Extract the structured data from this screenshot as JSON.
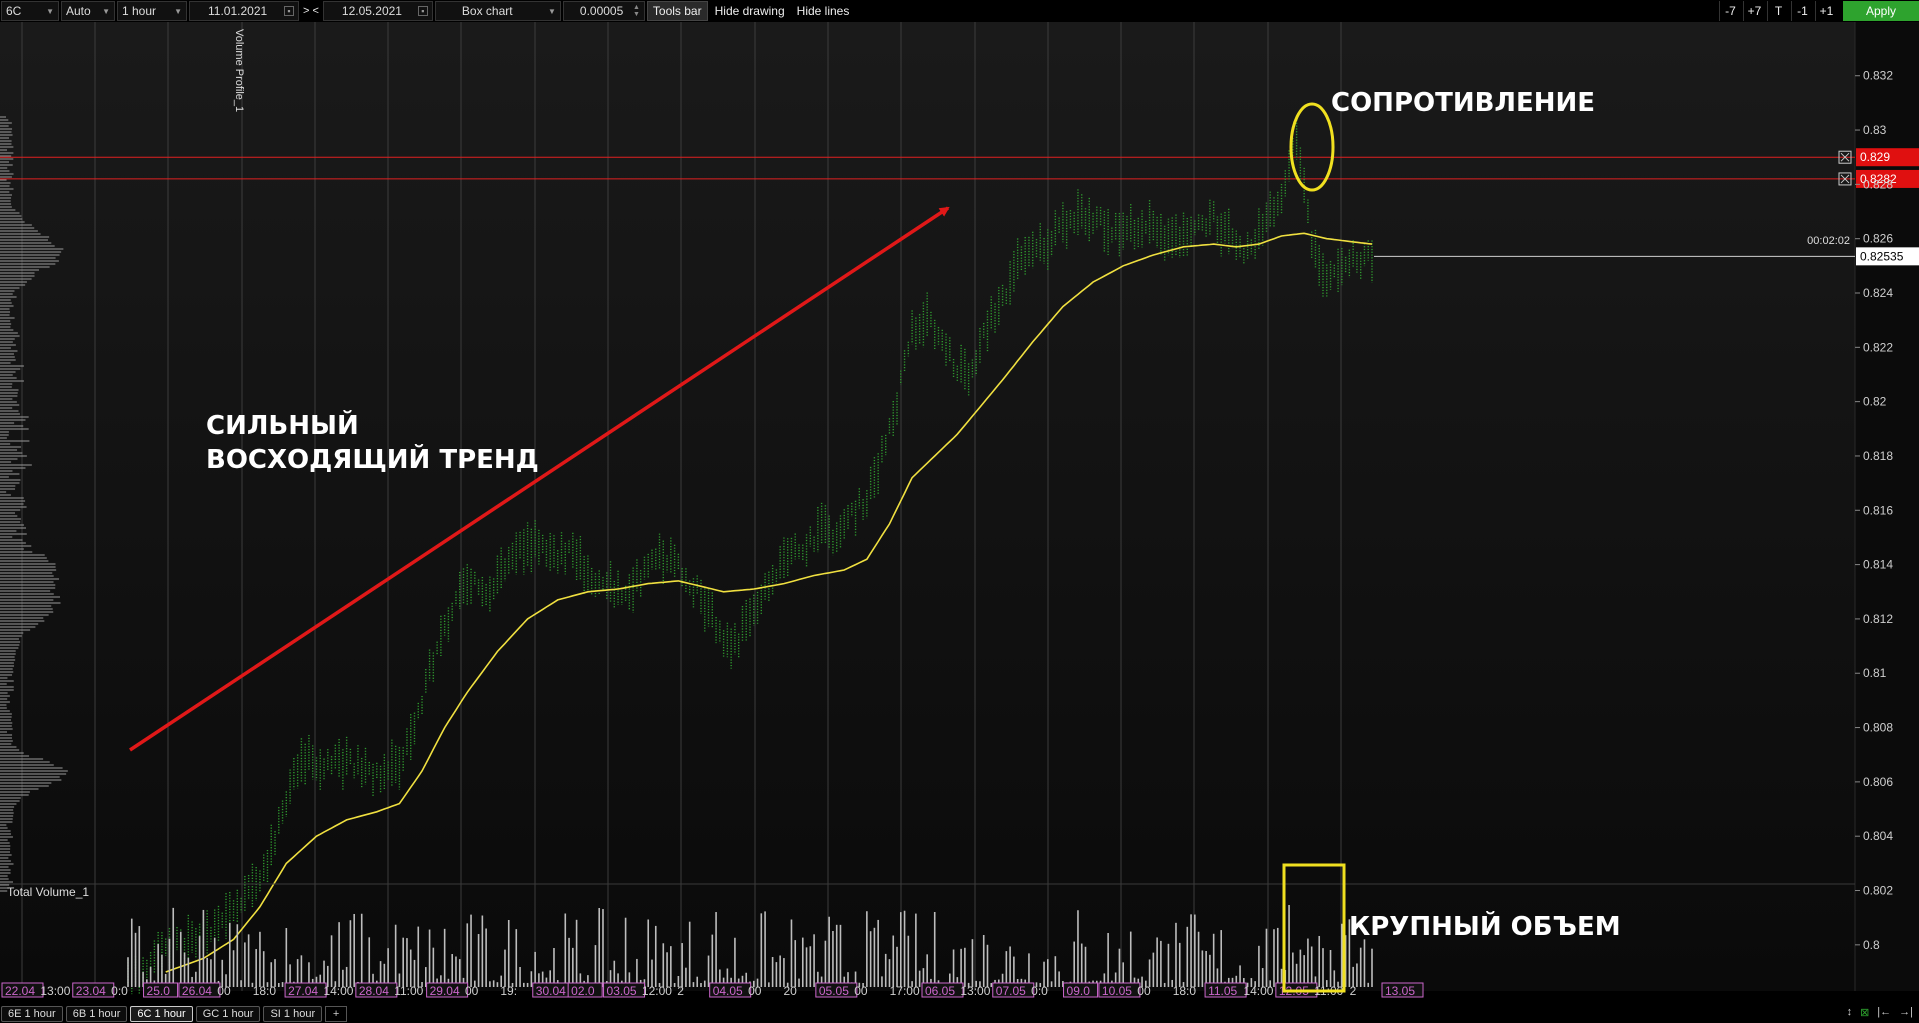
{
  "toolbar": {
    "symbol": "6C",
    "scale": "Auto",
    "timeframe": "1 hour",
    "date_from": "11.01.2021",
    "range_nav": "> <",
    "date_to": "12.05.2021",
    "chart_type": "Box chart",
    "tick_size": "0.00005",
    "tools_bar": "Tools bar",
    "hide_drawing": "Hide drawing",
    "hide_lines": "Hide lines",
    "shift_buttons": [
      "-7",
      "+7",
      "T",
      "-1",
      "+1"
    ],
    "apply": "Apply"
  },
  "tabs": [
    "6E 1 hour",
    "6B 1 hour",
    "6C 1 hour",
    "GC 1 hour",
    "SI 1 hour"
  ],
  "active_tab": 2,
  "tab_add": "+",
  "tab_tools": [
    "↕",
    "⊠",
    "|←",
    "→|"
  ],
  "annotations": {
    "resistance": "СОПРОТИВЛЕНИЕ",
    "trend_line1": "СИЛЬНЫЙ",
    "trend_line2": "ВОСХОДЯЩИЙ ТРЕНД",
    "volume": "КРУПНЫЙ ОБЪЕМ"
  },
  "indicators": {
    "volume_profile": "Volume Profile_1",
    "total_volume": "Total Volume_1"
  },
  "timer": "00:02:02",
  "colors": {
    "bars": "#2f9a2f",
    "ma": "#f0e040",
    "arrow": "#e01818",
    "levels": "#e02020",
    "highlight": "#f0e020",
    "date_label": "#cc66cc",
    "apply": "#2ea32e"
  },
  "chart_data": {
    "type": "bar",
    "y_axis": {
      "min": 0.799,
      "max": 0.8328,
      "ticks": [
        "0.832",
        "0.83",
        "0.828",
        "0.826",
        "0.824",
        "0.822",
        "0.82",
        "0.818",
        "0.816",
        "0.814",
        "0.812",
        "0.81",
        "0.808",
        "0.806",
        "0.804",
        "0.802",
        "0.8"
      ]
    },
    "price_levels": [
      {
        "label": "0.829",
        "value": 0.829
      },
      {
        "label": "0.8282",
        "value": 0.8282
      }
    ],
    "last_price": {
      "label": "0.82535",
      "value": 0.82535
    },
    "x_labels": [
      {
        "text": "22.04",
        "date": true
      },
      {
        "text": "13:00",
        "date": false
      },
      {
        "text": "23.04",
        "date": true
      },
      {
        "text": "0:0",
        "date": false
      },
      {
        "text": "25.0",
        "date": true
      },
      {
        "text": "26.04",
        "date": true
      },
      {
        "text": "00",
        "date": false
      },
      {
        "text": "18:0",
        "date": false
      },
      {
        "text": "27.04",
        "date": true
      },
      {
        "text": "14:00",
        "date": false
      },
      {
        "text": "28.04",
        "date": true
      },
      {
        "text": "11:00",
        "date": false
      },
      {
        "text": "29.04",
        "date": true
      },
      {
        "text": "00",
        "date": false
      },
      {
        "text": "19:",
        "date": false
      },
      {
        "text": "30.04",
        "date": true
      },
      {
        "text": "02.0",
        "date": true
      },
      {
        "text": "03.05",
        "date": true
      },
      {
        "text": "12:00",
        "date": false
      },
      {
        "text": "2",
        "date": false
      },
      {
        "text": "04.05",
        "date": true
      },
      {
        "text": "00",
        "date": false
      },
      {
        "text": "20",
        "date": false
      },
      {
        "text": "05.05",
        "date": true
      },
      {
        "text": "00",
        "date": false
      },
      {
        "text": "17:00",
        "date": false
      },
      {
        "text": "06.05",
        "date": true
      },
      {
        "text": "13:00",
        "date": false
      },
      {
        "text": "07.05",
        "date": true
      },
      {
        "text": "0:0",
        "date": false
      },
      {
        "text": "09.0",
        "date": true
      },
      {
        "text": "10.05",
        "date": true
      },
      {
        "text": "00",
        "date": false
      },
      {
        "text": "18:0",
        "date": false
      },
      {
        "text": "11.05",
        "date": true
      },
      {
        "text": "14:00",
        "date": false
      },
      {
        "text": "12.05",
        "date": true
      },
      {
        "text": "11:00",
        "date": false
      },
      {
        "text": "2",
        "date": false
      },
      {
        "text": "13.05",
        "date": true
      }
    ],
    "price_anchors": [
      [
        0,
        0.799
      ],
      [
        5,
        0.7993
      ],
      [
        10,
        0.7998
      ],
      [
        16,
        0.8001
      ],
      [
        20,
        0.8003
      ],
      [
        25,
        0.8008
      ],
      [
        30,
        0.8015
      ],
      [
        34,
        0.8022
      ],
      [
        38,
        0.8035
      ],
      [
        41,
        0.805
      ],
      [
        44,
        0.8063
      ],
      [
        48,
        0.8068
      ],
      [
        52,
        0.8067
      ],
      [
        56,
        0.8068
      ],
      [
        60,
        0.8066
      ],
      [
        64,
        0.8063
      ],
      [
        68,
        0.8062
      ],
      [
        72,
        0.8067
      ],
      [
        76,
        0.808
      ],
      [
        80,
        0.81
      ],
      [
        84,
        0.8118
      ],
      [
        88,
        0.8128
      ],
      [
        92,
        0.8135
      ],
      [
        96,
        0.813
      ],
      [
        100,
        0.814
      ],
      [
        104,
        0.8145
      ],
      [
        108,
        0.8147
      ],
      [
        112,
        0.8143
      ],
      [
        116,
        0.8145
      ],
      [
        120,
        0.814
      ],
      [
        124,
        0.8135
      ],
      [
        128,
        0.8132
      ],
      [
        132,
        0.813
      ],
      [
        136,
        0.8135
      ],
      [
        140,
        0.8145
      ],
      [
        144,
        0.8142
      ],
      [
        148,
        0.8135
      ],
      [
        152,
        0.8128
      ],
      [
        156,
        0.8118
      ],
      [
        160,
        0.8108
      ],
      [
        164,
        0.8118
      ],
      [
        168,
        0.813
      ],
      [
        172,
        0.8138
      ],
      [
        176,
        0.8143
      ],
      [
        180,
        0.8148
      ],
      [
        184,
        0.8153
      ],
      [
        188,
        0.815
      ],
      [
        192,
        0.8158
      ],
      [
        196,
        0.8165
      ],
      [
        200,
        0.818
      ],
      [
        204,
        0.82
      ],
      [
        208,
        0.8225
      ],
      [
        212,
        0.823
      ],
      [
        216,
        0.8222
      ],
      [
        220,
        0.8212
      ],
      [
        224,
        0.821
      ],
      [
        228,
        0.8228
      ],
      [
        232,
        0.8238
      ],
      [
        236,
        0.825
      ],
      [
        240,
        0.8255
      ],
      [
        244,
        0.8258
      ],
      [
        248,
        0.8265
      ],
      [
        252,
        0.827
      ],
      [
        256,
        0.8268
      ],
      [
        260,
        0.8263
      ],
      [
        264,
        0.8262
      ],
      [
        268,
        0.8265
      ],
      [
        272,
        0.8263
      ],
      [
        276,
        0.8258
      ],
      [
        280,
        0.8262
      ],
      [
        284,
        0.8265
      ],
      [
        288,
        0.8268
      ],
      [
        292,
        0.826
      ],
      [
        296,
        0.8252
      ],
      [
        300,
        0.8262
      ],
      [
        304,
        0.827
      ],
      [
        308,
        0.8285
      ],
      [
        310,
        0.8298
      ],
      [
        312,
        0.828
      ],
      [
        314,
        0.826
      ],
      [
        318,
        0.8245
      ],
      [
        322,
        0.825
      ],
      [
        326,
        0.8252
      ],
      [
        330,
        0.8253
      ]
    ],
    "ma_anchors": [
      [
        10,
        0.799
      ],
      [
        20,
        0.7995
      ],
      [
        28,
        0.8002
      ],
      [
        35,
        0.8014
      ],
      [
        42,
        0.803
      ],
      [
        50,
        0.804
      ],
      [
        58,
        0.8046
      ],
      [
        66,
        0.8049
      ],
      [
        72,
        0.8052
      ],
      [
        78,
        0.8064
      ],
      [
        84,
        0.808
      ],
      [
        90,
        0.8093
      ],
      [
        98,
        0.8108
      ],
      [
        106,
        0.812
      ],
      [
        114,
        0.8127
      ],
      [
        122,
        0.813
      ],
      [
        130,
        0.8131
      ],
      [
        138,
        0.8133
      ],
      [
        146,
        0.8134
      ],
      [
        152,
        0.8132
      ],
      [
        158,
        0.813
      ],
      [
        166,
        0.8131
      ],
      [
        174,
        0.8133
      ],
      [
        182,
        0.8136
      ],
      [
        190,
        0.8138
      ],
      [
        196,
        0.8142
      ],
      [
        202,
        0.8155
      ],
      [
        208,
        0.8172
      ],
      [
        214,
        0.818
      ],
      [
        220,
        0.8188
      ],
      [
        226,
        0.8198
      ],
      [
        232,
        0.8208
      ],
      [
        240,
        0.8222
      ],
      [
        248,
        0.8235
      ],
      [
        256,
        0.8244
      ],
      [
        264,
        0.825
      ],
      [
        272,
        0.8254
      ],
      [
        280,
        0.8257
      ],
      [
        288,
        0.8258
      ],
      [
        294,
        0.8257
      ],
      [
        300,
        0.8258
      ],
      [
        306,
        0.8261
      ],
      [
        312,
        0.8262
      ],
      [
        318,
        0.826
      ],
      [
        324,
        0.8259
      ],
      [
        330,
        0.8258
      ]
    ],
    "volume_highlight_bars": [
      304,
      315
    ]
  }
}
